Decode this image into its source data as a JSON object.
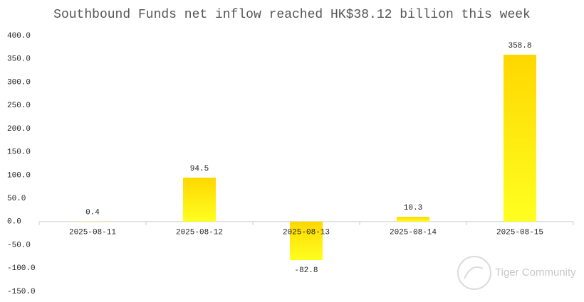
{
  "chart_data": {
    "type": "bar",
    "title": "Southbound Funds net inflow reached HK$38.12 billion this week",
    "categories": [
      "2025-08-11",
      "2025-08-12",
      "2025-08-13",
      "2025-08-14",
      "2025-08-15"
    ],
    "values": [
      0.4,
      94.5,
      -82.8,
      10.3,
      358.8
    ],
    "color": "#ffe000",
    "ylim": [
      -150,
      400
    ],
    "yticks": [
      {
        "value": -150,
        "label": "-150.0"
      },
      {
        "value": -100,
        "label": "-100.0"
      },
      {
        "value": -50,
        "label": "-50.0"
      },
      {
        "value": 0,
        "label": "0.0"
      },
      {
        "value": 50,
        "label": "50.0"
      },
      {
        "value": 100,
        "label": "100.0"
      },
      {
        "value": 150,
        "label": "150.0"
      },
      {
        "value": 200,
        "label": "200.0"
      },
      {
        "value": 250,
        "label": "250.0"
      },
      {
        "value": 300,
        "label": "300.0"
      },
      {
        "value": 350,
        "label": "350.0"
      },
      {
        "value": 400,
        "label": "400.0"
      }
    ],
    "grid": false,
    "watermark": "Tiger Community"
  }
}
